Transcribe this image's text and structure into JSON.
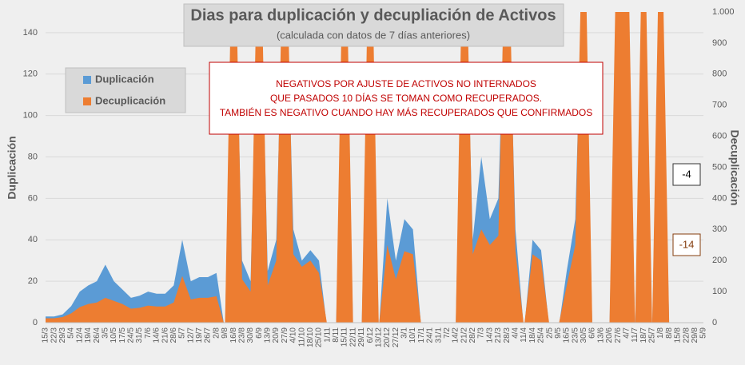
{
  "chart_data": {
    "type": "area",
    "title": "Dias para duplicación y decupliación de Activos",
    "subtitle": "(calculada con datos de 7 días anteriores)",
    "ylabel": "Duplicación",
    "y2label": "Decuplicación",
    "annotations": [
      "NEGATIVOS POR AJUSTE DE ACTIVOS NO INTERNADOS",
      "QUE PASADOS 10 DÍAS SE TOMAN COMO RECUPERADOS.",
      "TAMBIÉN ES NEGATIVO CUANDO HAY MÁS RECUPERADOS QUE CONFIRMADOS",
      "-4",
      "-14"
    ],
    "categories": [
      "15/3",
      "22/3",
      "29/3",
      "5/4",
      "12/4",
      "19/4",
      "26/4",
      "3/5",
      "10/5",
      "17/5",
      "24/5",
      "31/5",
      "7/6",
      "14/6",
      "21/6",
      "28/6",
      "5/7",
      "12/7",
      "19/7",
      "26/7",
      "2/8",
      "9/8",
      "16/8",
      "23/8",
      "30/8",
      "6/9",
      "13/9",
      "20/9",
      "27/9",
      "4/10",
      "11/10",
      "18/10",
      "25/10",
      "1/11",
      "8/11",
      "15/11",
      "22/11",
      "29/11",
      "6/12",
      "13/12",
      "20/12",
      "27/12",
      "3/1",
      "10/1",
      "17/1",
      "24/1",
      "31/1",
      "7/2",
      "14/2",
      "21/2",
      "28/2",
      "7/3",
      "14/3",
      "21/3",
      "28/3",
      "4/4",
      "11/4",
      "18/4",
      "25/4",
      "2/5",
      "9/5",
      "16/5",
      "23/5",
      "30/5",
      "6/6",
      "13/6",
      "20/6",
      "27/6",
      "4/7",
      "11/7",
      "18/7",
      "25/7",
      "1/8",
      "8/8",
      "15/8",
      "22/8",
      "29/8",
      "5/9"
    ],
    "series": [
      {
        "name": "Duplicación",
        "color": "#5b9bd5",
        "axis": "y",
        "values": [
          3,
          3,
          4,
          8,
          15,
          18,
          20,
          28,
          20,
          16,
          12,
          13,
          15,
          14,
          14,
          18,
          40,
          20,
          22,
          22,
          24,
          -4,
          200,
          30,
          20,
          200,
          25,
          40,
          200,
          45,
          30,
          35,
          30,
          -4,
          -4,
          200,
          -4,
          -4,
          200,
          -4,
          60,
          30,
          50,
          45,
          -4,
          -4,
          -4,
          -4,
          -4,
          200,
          40,
          80,
          50,
          60,
          200,
          45,
          -4,
          40,
          35,
          -4,
          -4,
          25,
          50,
          200,
          -4,
          -4,
          -4,
          200,
          200,
          -4,
          200,
          -4,
          200,
          -4,
          -4,
          -4,
          -4,
          -4
        ]
      },
      {
        "name": "Decuplicación",
        "color": "#ed7d31",
        "axis": "y2",
        "values": [
          14,
          14,
          18,
          30,
          50,
          60,
          65,
          80,
          70,
          60,
          45,
          48,
          55,
          52,
          52,
          65,
          150,
          75,
          80,
          80,
          85,
          -14,
          1500,
          140,
          100,
          1500,
          120,
          200,
          1500,
          220,
          180,
          200,
          160,
          -14,
          -14,
          1500,
          -14,
          -14,
          1500,
          -14,
          250,
          140,
          230,
          220,
          -14,
          -14,
          -14,
          -14,
          -14,
          1500,
          220,
          300,
          250,
          280,
          1500,
          230,
          -14,
          220,
          200,
          -14,
          -14,
          120,
          250,
          1500,
          -14,
          -14,
          -14,
          1500,
          1500,
          -14,
          1500,
          -14,
          1500,
          -14,
          -14,
          -14,
          -14,
          -14
        ]
      }
    ],
    "ylim": [
      0,
      150
    ],
    "yticks": [
      0,
      20,
      40,
      60,
      80,
      100,
      120,
      140
    ],
    "y2lim": [
      0,
      1000
    ],
    "y2ticks": [
      0,
      100,
      200,
      300,
      400,
      500,
      600,
      700,
      800,
      900,
      {
        "value": 1000,
        "label": "1.000"
      }
    ],
    "grid": true
  }
}
